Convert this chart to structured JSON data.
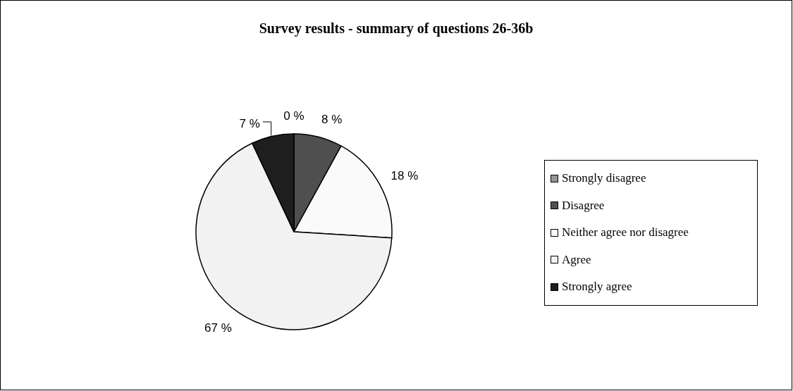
{
  "chart_data": {
    "type": "pie",
    "title": "Survey results - summary of questions 26-36b",
    "categories": [
      "Strongly disagree",
      "Disagree",
      "Neither agree nor disagree",
      "Agree",
      "Strongly agree"
    ],
    "values": [
      0,
      8,
      18,
      67,
      7
    ],
    "colors": [
      "#969696",
      "#4f4f4f",
      "#fafafa",
      "#f2f2f2",
      "#1e1e1e"
    ],
    "value_labels": [
      "0 %",
      "8 %",
      "18 %",
      "67 %",
      "7 %"
    ],
    "legend": "right"
  }
}
